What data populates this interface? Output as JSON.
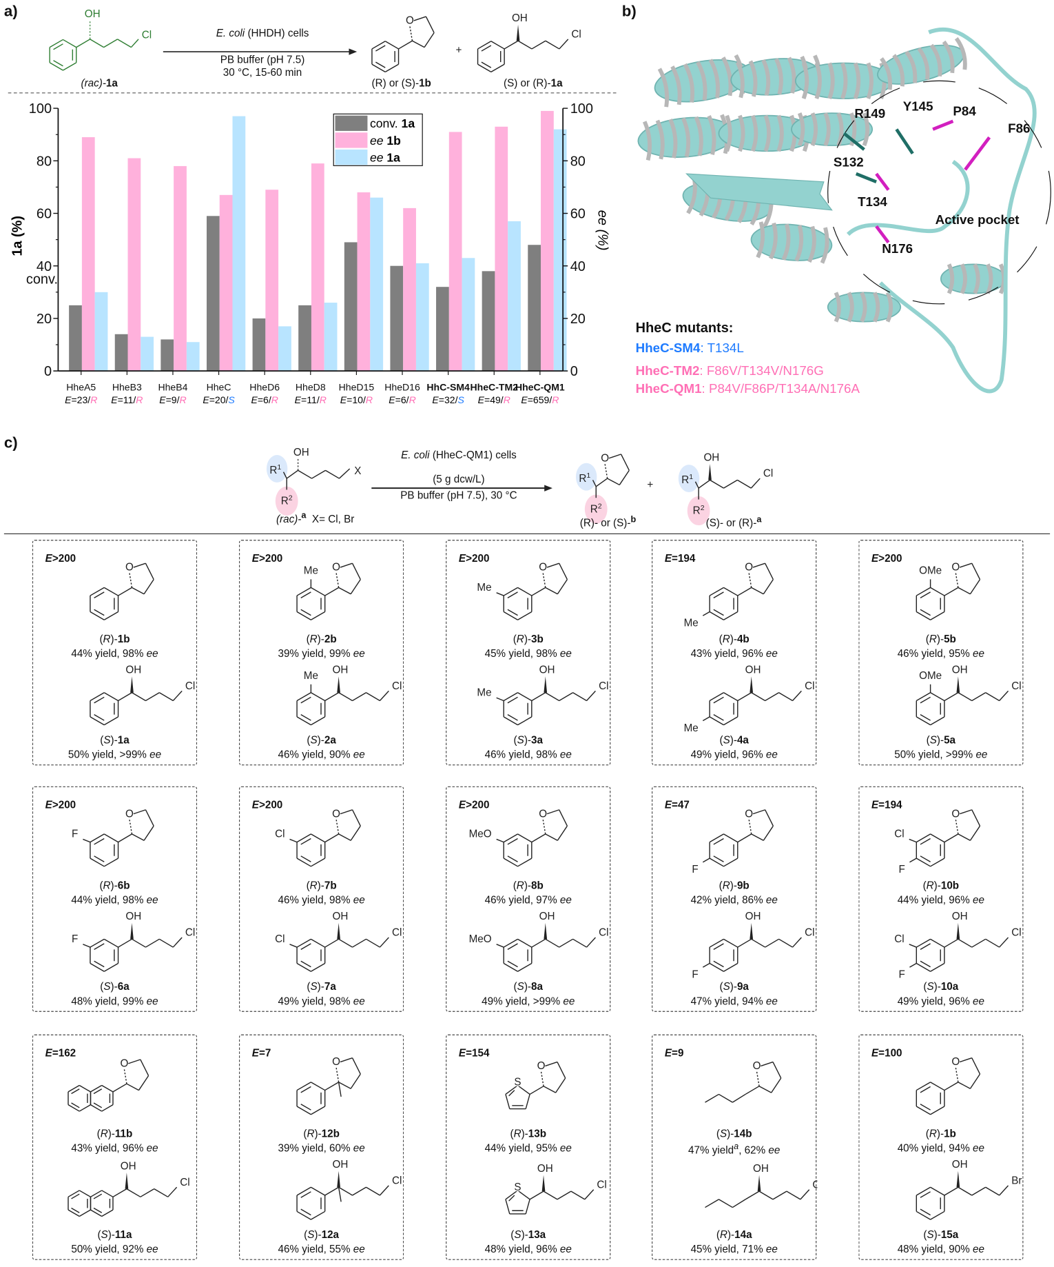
{
  "panel_labels": {
    "a": "a)",
    "b": "b)",
    "c": "c)"
  },
  "common": {
    "E": "E",
    "ee": "ee",
    "yield": "yield",
    "rac": "rac"
  },
  "scheme_a": {
    "substrate": {
      "label_rac": "(rac)-",
      "label_id": "1a",
      "oh": "OH",
      "halide": "Cl"
    },
    "catalyst_italic": "E. coli",
    "catalyst_rest": "(HHDH) cells",
    "conditions_1": "PB buffer (pH 7.5)",
    "conditions_2": "30 °C, 15-60 min",
    "product_b": {
      "prefix": "(R) or (S)-",
      "id": "1b",
      "o": "O"
    },
    "plus": "+",
    "product_a": {
      "prefix": "(S) or (R)-",
      "id": "1a",
      "oh": "OH",
      "halide": "Cl"
    },
    "structure_color": "#2e7d32"
  },
  "chart_data": {
    "type": "bar",
    "categories": [
      "HheA5",
      "HheB3",
      "HheB4",
      "HheC",
      "HheD6",
      "HheD8",
      "HheD15",
      "HheD16",
      "HhC-SM4",
      "HheC-TM2",
      "HheC-QM1"
    ],
    "category_bold": [
      false,
      false,
      false,
      false,
      false,
      false,
      false,
      false,
      true,
      true,
      true
    ],
    "e_values": [
      "23",
      "11",
      "9",
      "20",
      "6",
      "11",
      "10",
      "6",
      "32",
      "49",
      "659"
    ],
    "configurations": [
      "R",
      "R",
      "R",
      "S",
      "R",
      "R",
      "R",
      "R",
      "S",
      "R",
      "R"
    ],
    "configuration_colors": {
      "R": "#ff6fb5",
      "S": "#1e7bff"
    },
    "series": [
      {
        "name": "conv. 1a",
        "name_prefix": "conv.",
        "name_id": "1a",
        "axis": "left",
        "color": "#7f7f7f",
        "values": [
          25,
          14,
          12,
          59,
          20,
          25,
          49,
          40,
          32,
          38,
          48
        ]
      },
      {
        "name": "ee 1b",
        "name_prefix": "ee",
        "name_id": "1b",
        "axis": "right",
        "color": "#ffb1dc",
        "values": [
          89,
          81,
          78,
          67,
          69,
          79,
          68,
          62,
          91,
          93,
          99
        ]
      },
      {
        "name": "ee 1a",
        "name_prefix": "ee",
        "name_id": "1a",
        "axis": "right",
        "color": "#b8e4ff",
        "values": [
          30,
          13,
          11,
          97,
          17,
          26,
          66,
          41,
          43,
          57,
          92
        ]
      }
    ],
    "ylabel_left": "1a (%)",
    "ylabel_left_extra": "conv.",
    "ylabel_right": "ee (%)",
    "ylim": [
      0,
      100
    ],
    "yticks": [
      0,
      20,
      40,
      60,
      80,
      100
    ],
    "legend_position": "top-center",
    "grid": false
  },
  "panel_b": {
    "residues": [
      {
        "name": "R149",
        "group": "catalytic"
      },
      {
        "name": "Y145",
        "group": "catalytic"
      },
      {
        "name": "P84",
        "group": "mutated"
      },
      {
        "name": "F86",
        "group": "mutated"
      },
      {
        "name": "S132",
        "group": "catalytic"
      },
      {
        "name": "T134",
        "group": "mutated"
      },
      {
        "name": "N176",
        "group": "mutated"
      }
    ],
    "pocket_label": "Active pocket",
    "protein_color": "#93d2cf",
    "catalytic_color": "#1f6e66",
    "mutated_color": "#d21fbf",
    "mutants_title": "HheC mutants:",
    "mutants": [
      {
        "name": "HheC-SM4",
        "mutations": "T134L",
        "color": "#1e7bff"
      },
      {
        "name": "HheC-TM2",
        "mutations": "F86V/T134V/N176G",
        "color": "#ff6fb5"
      },
      {
        "name": "HheC-QM1",
        "mutations": "P84V/F86P/T134A/N176A",
        "color": "#ff6fb5"
      }
    ]
  },
  "scheme_c": {
    "substrate": {
      "r1": "R",
      "r1_sup": "1",
      "r2": "R",
      "r2_sup": "2",
      "oh": "OH",
      "x": "X",
      "label": "(rac)-",
      "label_sup": "a",
      "x_def": "X= Cl, Br"
    },
    "catalyst_italic": "E. coli",
    "catalyst_rest": "(HheC-QM1) cells",
    "loading": "(5 g dcw/L)",
    "conditions": "PB buffer (pH 7.5), 30 °C",
    "product_b": {
      "o": "O",
      "label": "(R)- or (S)-",
      "label_sup": "b"
    },
    "plus": "+",
    "product_a": {
      "oh": "OH",
      "halide": "Cl",
      "label": "(S)- or (R)-",
      "label_sup": "a"
    },
    "r1_color": "#dbe9fb",
    "r2_color": "#fbd3e2"
  },
  "compounds": [
    {
      "e": ">200",
      "aryl": "phenyl",
      "subs": [],
      "b": {
        "cfg": "R",
        "id": "1b",
        "yield": "44%",
        "ee": "98%"
      },
      "a": {
        "cfg": "S",
        "id": "1a",
        "yield": "50%",
        "ee": ">99%"
      },
      "halide": "Cl"
    },
    {
      "e": ">200",
      "aryl": "phenyl",
      "subs": [
        {
          "text": "Me",
          "pos": "ortho"
        }
      ],
      "b": {
        "cfg": "R",
        "id": "2b",
        "yield": "39%",
        "ee": "99%"
      },
      "a": {
        "cfg": "S",
        "id": "2a",
        "yield": "46%",
        "ee": "90%"
      },
      "halide": "Cl"
    },
    {
      "e": ">200",
      "aryl": "phenyl",
      "subs": [
        {
          "text": "Me",
          "pos": "meta"
        }
      ],
      "b": {
        "cfg": "R",
        "id": "3b",
        "yield": "45%",
        "ee": "98%"
      },
      "a": {
        "cfg": "S",
        "id": "3a",
        "yield": "46%",
        "ee": "98%"
      },
      "halide": "Cl"
    },
    {
      "e": "=194",
      "aryl": "phenyl",
      "subs": [
        {
          "text": "Me",
          "pos": "para"
        }
      ],
      "b": {
        "cfg": "R",
        "id": "4b",
        "yield": "43%",
        "ee": "96%"
      },
      "a": {
        "cfg": "S",
        "id": "4a",
        "yield": "49%",
        "ee": "96%"
      },
      "halide": "Cl"
    },
    {
      "e": ">200",
      "aryl": "phenyl",
      "subs": [
        {
          "text": "OMe",
          "pos": "ortho"
        }
      ],
      "b": {
        "cfg": "R",
        "id": "5b",
        "yield": "46%",
        "ee": "95%"
      },
      "a": {
        "cfg": "S",
        "id": "5a",
        "yield": "50%",
        "ee": ">99%"
      },
      "halide": "Cl"
    },
    {
      "e": ">200",
      "aryl": "phenyl",
      "subs": [
        {
          "text": "F",
          "pos": "meta"
        }
      ],
      "b": {
        "cfg": "R",
        "id": "6b",
        "yield": "44%",
        "ee": "98%"
      },
      "a": {
        "cfg": "S",
        "id": "6a",
        "yield": "48%",
        "ee": "99%"
      },
      "halide": "Cl"
    },
    {
      "e": ">200",
      "aryl": "phenyl",
      "subs": [
        {
          "text": "Cl",
          "pos": "meta"
        }
      ],
      "b": {
        "cfg": "R",
        "id": "7b",
        "yield": "46%",
        "ee": "98%"
      },
      "a": {
        "cfg": "S",
        "id": "7a",
        "yield": "49%",
        "ee": "98%"
      },
      "halide": "Cl"
    },
    {
      "e": ">200",
      "aryl": "phenyl",
      "subs": [
        {
          "text": "MeO",
          "pos": "meta"
        }
      ],
      "b": {
        "cfg": "R",
        "id": "8b",
        "yield": "46%",
        "ee": "97%"
      },
      "a": {
        "cfg": "S",
        "id": "8a",
        "yield": "49%",
        "ee": ">99%"
      },
      "halide": "Cl"
    },
    {
      "e": "=47",
      "aryl": "phenyl",
      "subs": [
        {
          "text": "F",
          "pos": "para"
        }
      ],
      "b": {
        "cfg": "R",
        "id": "9b",
        "yield": "42%",
        "ee": "86%"
      },
      "a": {
        "cfg": "S",
        "id": "9a",
        "yield": "47%",
        "ee": "94%"
      },
      "halide": "Cl"
    },
    {
      "e": "=194",
      "aryl": "phenyl",
      "subs": [
        {
          "text": "Cl",
          "pos": "meta"
        },
        {
          "text": "F",
          "pos": "para"
        }
      ],
      "b": {
        "cfg": "R",
        "id": "10b",
        "yield": "44%",
        "ee": "96%"
      },
      "a": {
        "cfg": "S",
        "id": "10a",
        "yield": "49%",
        "ee": "96%"
      },
      "halide": "Cl"
    },
    {
      "e": "=162",
      "aryl": "naphthyl",
      "subs": [],
      "b": {
        "cfg": "R",
        "id": "11b",
        "yield": "43%",
        "ee": "96%"
      },
      "a": {
        "cfg": "S",
        "id": "11a",
        "yield": "50%",
        "ee": "92%"
      },
      "halide": "Cl"
    },
    {
      "e": "=7",
      "aryl": "phenyl-methyl",
      "subs": [],
      "b": {
        "cfg": "R",
        "id": "12b",
        "yield": "39%",
        "ee": "60%"
      },
      "a": {
        "cfg": "S",
        "id": "12a",
        "yield": "46%",
        "ee": "55%"
      },
      "halide": "Cl"
    },
    {
      "e": "=154",
      "aryl": "thienyl",
      "hetero": "S",
      "subs": [],
      "b": {
        "cfg": "R",
        "id": "13b",
        "yield": "44%",
        "ee": "95%"
      },
      "a": {
        "cfg": "S",
        "id": "13a",
        "yield": "48%",
        "ee": "96%"
      },
      "halide": "Cl"
    },
    {
      "e": "=9",
      "aryl": "propyl",
      "subs": [],
      "b": {
        "cfg": "S",
        "id": "14b",
        "yield": "47%",
        "note": "a",
        "ee": "62%"
      },
      "a": {
        "cfg": "R",
        "id": "14a",
        "yield": "45%",
        "ee": "71%"
      },
      "halide": "Cl"
    },
    {
      "e": "=100",
      "aryl": "phenyl",
      "subs": [],
      "b": {
        "cfg": "R",
        "id": "1b",
        "yield": "40%",
        "ee": "94%"
      },
      "a": {
        "cfg": "S",
        "id": "15a",
        "yield": "48%",
        "ee": "90%"
      },
      "halide": "Br"
    }
  ],
  "struct_labels": {
    "o": "O",
    "oh": "OH"
  }
}
